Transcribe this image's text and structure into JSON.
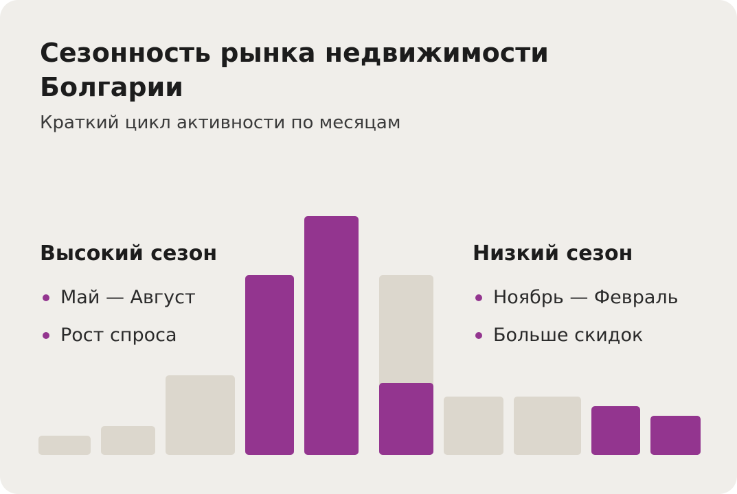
{
  "chart_data": {
    "type": "bar",
    "title": "Сезонность рынка недвижимости Болгарии",
    "subtitle": "Краткий цикл активности по месяцам",
    "panels": [
      {
        "heading": "Высокий сезон",
        "items": [
          "Май — Август",
          "Рост спроса"
        ]
      },
      {
        "heading": "Низкий сезон",
        "items": [
          "Ноябрь — Февраль",
          "Больше скидок"
        ]
      }
    ],
    "categories": [
      null,
      null,
      null,
      null,
      null,
      null,
      null,
      null,
      null,
      null
    ],
    "series": [
      {
        "color": "#dcd7cd",
        "values": [
          28,
          42,
          116,
          null,
          null,
          262,
          85,
          85,
          null,
          null
        ]
      },
      {
        "color": "#93358f",
        "values": [
          null,
          null,
          null,
          262,
          348,
          105,
          null,
          null,
          71,
          57
        ]
      }
    ],
    "ylim": [
      0,
      350
    ]
  }
}
